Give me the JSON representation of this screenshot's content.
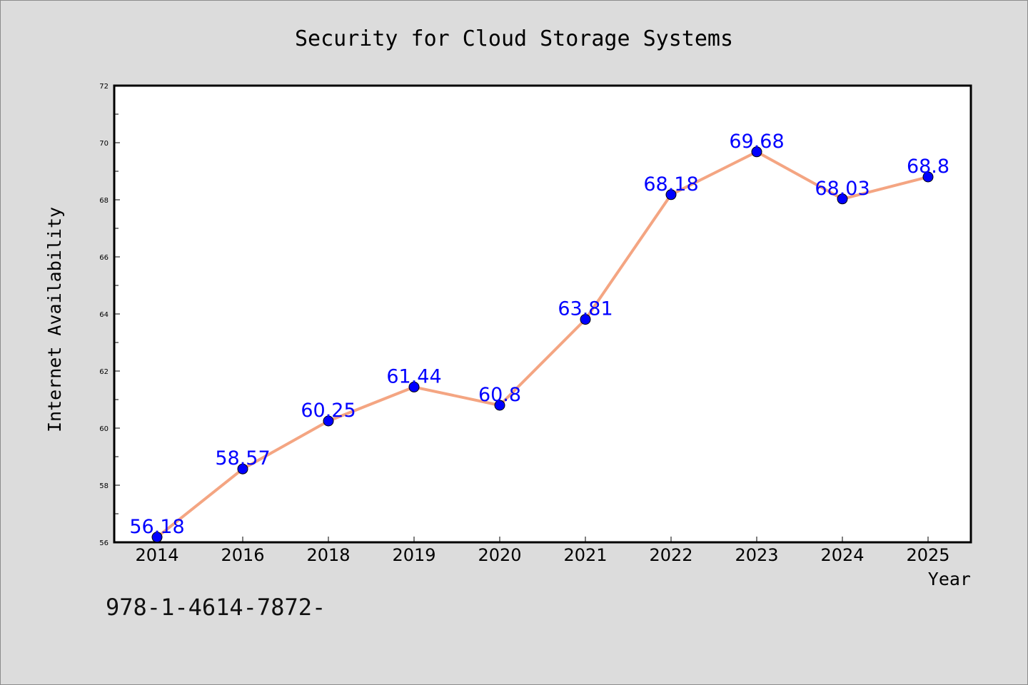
{
  "chart_data": {
    "type": "line",
    "title": "Security for Cloud Storage Systems",
    "xlabel": "Year",
    "ylabel": "Internet Availability",
    "categories": [
      "2014",
      "2016",
      "2018",
      "2019",
      "2020",
      "2021",
      "2022",
      "2023",
      "2024",
      "2025"
    ],
    "series": [
      {
        "values": [
          56.18,
          58.57,
          60.25,
          61.44,
          60.8,
          63.81,
          68.18,
          69.68,
          68.03,
          68.8
        ],
        "labels": [
          "56.18",
          "58.57",
          "60.25",
          "61.44",
          "60.8",
          "63.81",
          "68.18",
          "69.68",
          "68.03",
          "68.8"
        ],
        "line_color": "#f4a582",
        "marker_color": "#0000ff",
        "label_color": "#0000ff"
      }
    ],
    "ylim": [
      56,
      72
    ],
    "yticks": [
      "56",
      "58",
      "60",
      "62",
      "64",
      "66",
      "68",
      "70",
      "72"
    ],
    "grid": false
  },
  "footnote": "978-1-4614-7872-",
  "colors": {
    "background": "#dcdcdc",
    "plot_background": "#ffffff",
    "axis": "#000000"
  }
}
